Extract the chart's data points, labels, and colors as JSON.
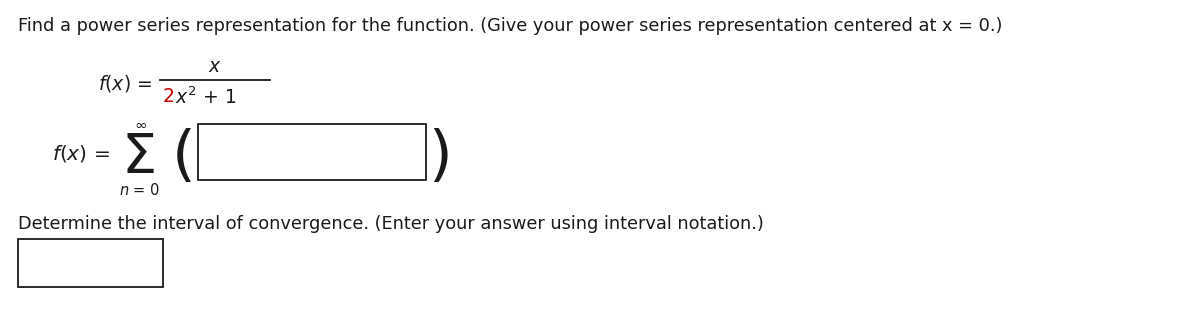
{
  "title_text": "Find a power series representation for the function. (Give your power series representation centered at x = 0.)",
  "red_color": "#cc0000",
  "black_color": "#1a1a1a",
  "bg_color": "#ffffff",
  "interval_label": "Determine the interval of convergence. (Enter your answer using interval notation.)",
  "title_fontsize": 12.8,
  "body_fontsize": 13.5,
  "denom_fs": 13.5,
  "sigma_fs": 40,
  "paren_fs": 44,
  "inf_fs": 11,
  "nzero_fs": 10.5
}
